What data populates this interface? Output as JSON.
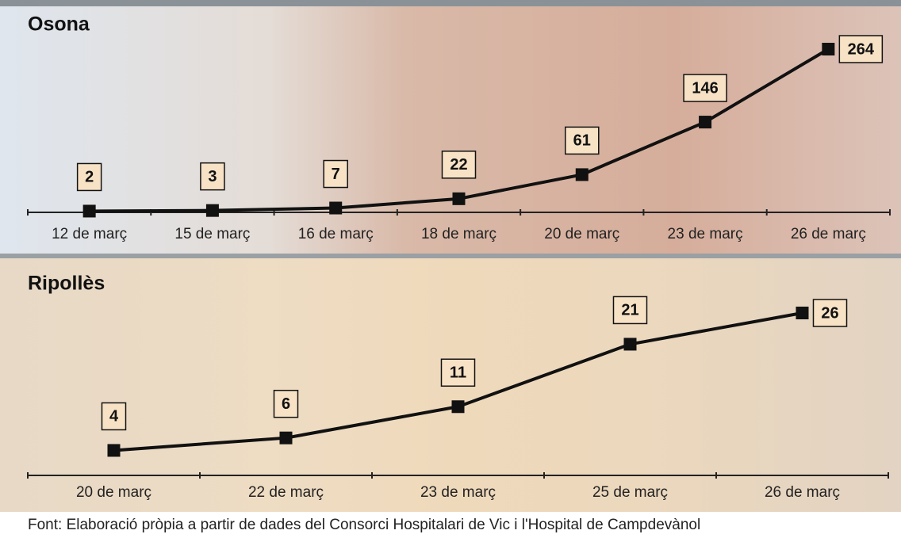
{
  "chart_data": [
    {
      "type": "line",
      "title": "Osona",
      "categories": [
        "12 de març",
        "15 de març",
        "16 de març",
        "18 de març",
        "20 de març",
        "23 de març",
        "26 de març"
      ],
      "values": [
        2,
        3,
        7,
        22,
        61,
        146,
        264
      ],
      "color": "#111111"
    },
    {
      "type": "line",
      "title": "Ripollès",
      "categories": [
        "20 de març",
        "22 de març",
        "23 de març",
        "25 de març",
        "26 de març"
      ],
      "values": [
        4,
        6,
        11,
        21,
        26
      ],
      "color": "#111111"
    }
  ],
  "source": "Font: Elaboració pròpia a partir de dades del Consorci Hospitalari de Vic i l'Hospital de Campdevànol"
}
